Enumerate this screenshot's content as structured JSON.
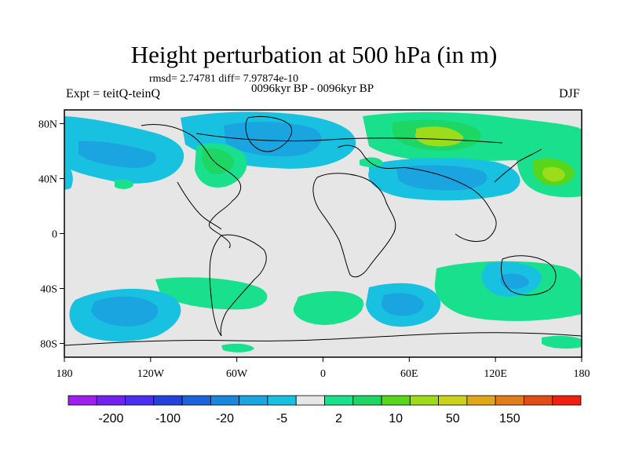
{
  "title": "Height perturbation at 500 hPa (in m)",
  "stats": "rmsd= 2.74781 diff= 7.97874e-10",
  "left_label": "Expt = teitQ-teinQ",
  "center_label": "0096kyr BP - 0096kyr BP",
  "right_label": "DJF",
  "axes": {
    "lon_ticks": [
      "180",
      "120W",
      "60W",
      "0",
      "60E",
      "120E",
      "180"
    ],
    "lat_ticks": [
      "80N",
      "40N",
      "0",
      "40S",
      "80S"
    ]
  },
  "colorbar": {
    "labels": [
      "-200",
      "-100",
      "-20",
      "-5",
      "2",
      "10",
      "50",
      "150"
    ],
    "colors": [
      "#9f1fef",
      "#7222ef",
      "#4b2ff0",
      "#2441dc",
      "#1b63dc",
      "#1986e0",
      "#1ba5e0",
      "#18c1e0",
      "#e6e6e6",
      "#19e08c",
      "#1ed664",
      "#58d61c",
      "#9ddc1b",
      "#cbd21b",
      "#e0a718",
      "#e07d18",
      "#e04c16",
      "#f02010"
    ]
  },
  "colors": {
    "land_background": "#e6e6e6",
    "coastline": "#000000"
  }
}
